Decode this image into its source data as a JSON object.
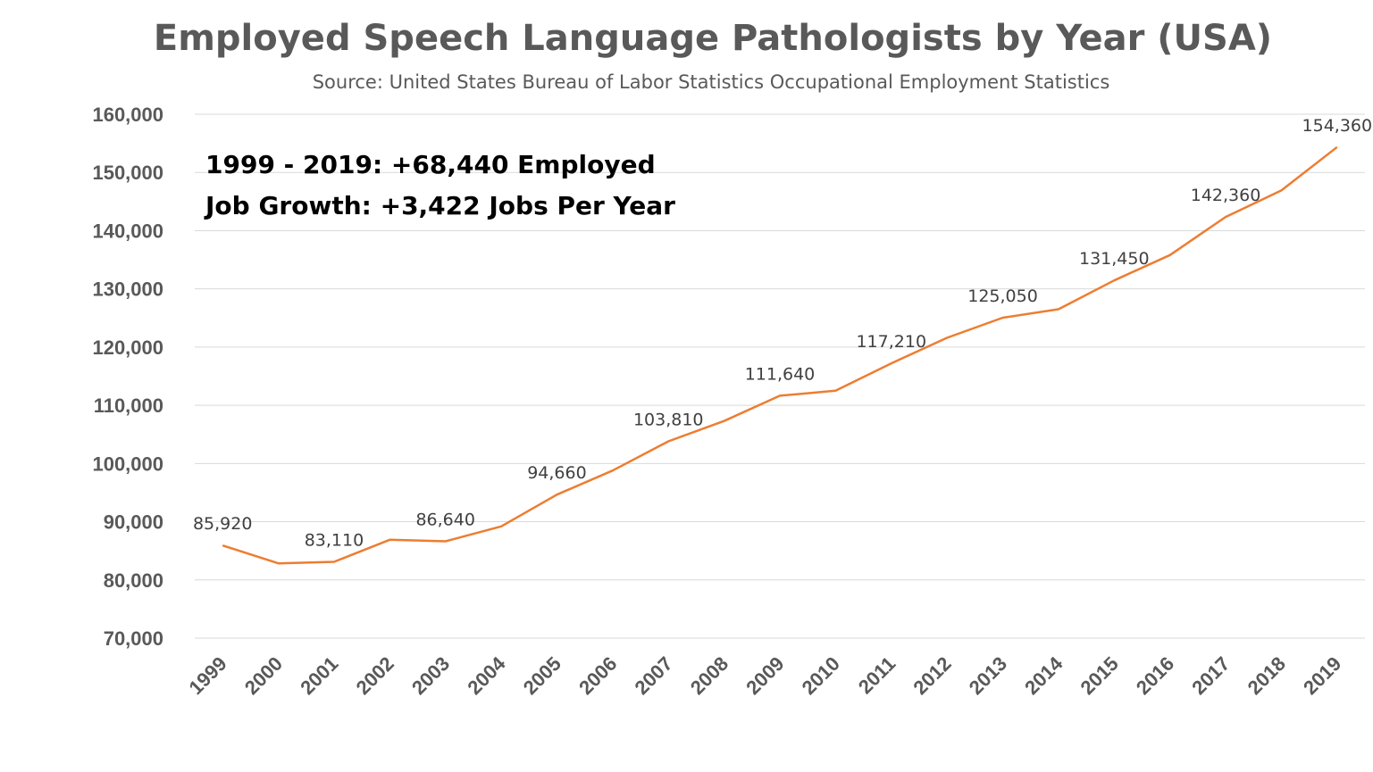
{
  "chart_data": {
    "type": "line",
    "title": "Employed Speech Language Pathologists by Year (USA)",
    "subtitle": "Source: United States Bureau of Labor Statistics Occupational Employment Statistics",
    "xlabel": "",
    "ylabel": "",
    "categories": [
      "1999",
      "2000",
      "2001",
      "2002",
      "2003",
      "2004",
      "2005",
      "2006",
      "2007",
      "2008",
      "2009",
      "2010",
      "2011",
      "2012",
      "2013",
      "2014",
      "2015",
      "2016",
      "2017",
      "2018",
      "2019"
    ],
    "series": [
      {
        "values": [
          85920,
          82850,
          83110,
          86900,
          86640,
          89200,
          94660,
          98800,
          103810,
          107300,
          111640,
          112500,
          117210,
          121600,
          125050,
          126500,
          131450,
          135800,
          142360,
          146900,
          154360
        ],
        "color": "#ed7d31"
      }
    ],
    "data_labels": [
      {
        "index": 0,
        "text": "85,920"
      },
      {
        "index": 2,
        "text": "83,110"
      },
      {
        "index": 4,
        "text": "86,640"
      },
      {
        "index": 6,
        "text": "94,660"
      },
      {
        "index": 8,
        "text": "103,810"
      },
      {
        "index": 10,
        "text": "111,640"
      },
      {
        "index": 12,
        "text": "117,210"
      },
      {
        "index": 14,
        "text": "125,050"
      },
      {
        "index": 16,
        "text": "131,450"
      },
      {
        "index": 18,
        "text": "142,360"
      },
      {
        "index": 20,
        "text": "154,360"
      }
    ],
    "ylim": [
      70000,
      160000
    ],
    "yticks": [
      70000,
      80000,
      90000,
      100000,
      110000,
      120000,
      130000,
      140000,
      150000,
      160000
    ],
    "ytick_labels": [
      "70,000",
      "80,000",
      "90,000",
      "100,000",
      "110,000",
      "120,000",
      "130,000",
      "140,000",
      "150,000",
      "160,000"
    ],
    "grid": true,
    "legend": "none",
    "annotations": [
      "1999 - 2019:  +68,440 Employed",
      "Job Growth: +3,422 Jobs Per Year"
    ]
  }
}
